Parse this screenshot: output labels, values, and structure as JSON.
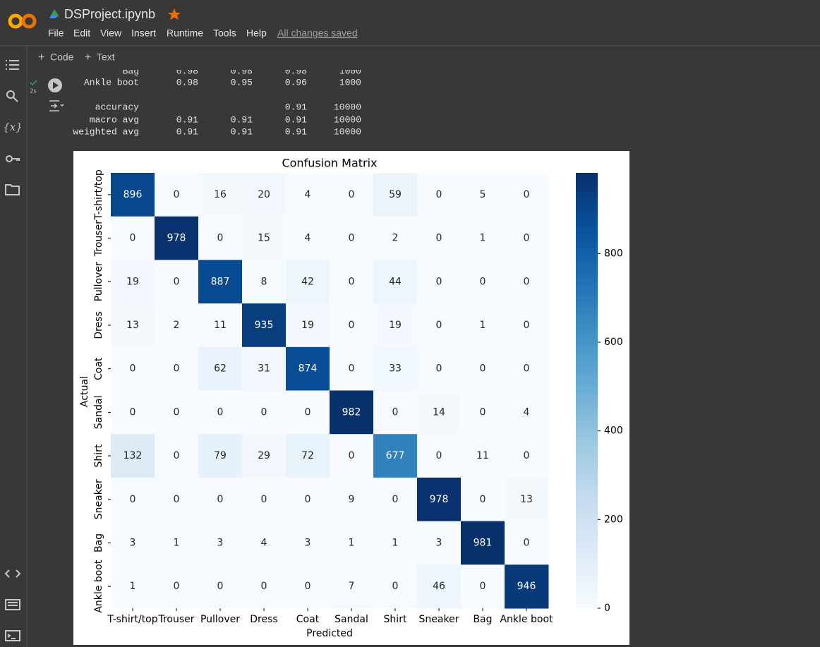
{
  "header": {
    "title": "DSProject.ipynb",
    "menu": [
      "File",
      "Edit",
      "View",
      "Insert",
      "Runtime",
      "Tools",
      "Help"
    ],
    "status": "All changes saved"
  },
  "toolbar": {
    "code": "Code",
    "text": "Text"
  },
  "cell": {
    "exec_time": "2s",
    "report": [
      [
        "Bag",
        0.98,
        0.98,
        0.98,
        1000
      ],
      [
        "Ankle boot",
        0.98,
        0.95,
        0.96,
        1000
      ],
      [
        "accuracy",
        null,
        null,
        0.91,
        10000
      ],
      [
        "macro avg",
        0.91,
        0.91,
        0.91,
        10000
      ],
      [
        "weighted avg",
        0.91,
        0.91,
        0.91,
        10000
      ]
    ]
  },
  "chart_data": {
    "type": "heatmap",
    "title": "Confusion Matrix",
    "x_label": "Predicted",
    "y_label": "Actual",
    "categories": [
      "T-shirt/top",
      "Trouser",
      "Pullover",
      "Dress",
      "Coat",
      "Sandal",
      "Shirt",
      "Sneaker",
      "Bag",
      "Ankle boot"
    ],
    "z": [
      [
        896,
        0,
        16,
        20,
        4,
        0,
        59,
        0,
        5,
        0
      ],
      [
        0,
        978,
        0,
        15,
        4,
        0,
        2,
        0,
        1,
        0
      ],
      [
        19,
        0,
        887,
        8,
        42,
        0,
        44,
        0,
        0,
        0
      ],
      [
        13,
        2,
        11,
        935,
        19,
        0,
        19,
        0,
        1,
        0
      ],
      [
        0,
        0,
        62,
        31,
        874,
        0,
        33,
        0,
        0,
        0
      ],
      [
        0,
        0,
        0,
        0,
        0,
        982,
        0,
        14,
        0,
        4
      ],
      [
        132,
        0,
        79,
        29,
        72,
        0,
        677,
        0,
        11,
        0
      ],
      [
        0,
        0,
        0,
        0,
        0,
        9,
        0,
        978,
        0,
        13
      ],
      [
        3,
        1,
        3,
        4,
        3,
        1,
        1,
        3,
        981,
        0
      ],
      [
        1,
        0,
        0,
        0,
        0,
        7,
        0,
        46,
        0,
        946
      ]
    ],
    "zlim": [
      0,
      982
    ],
    "zticks": [
      0,
      200,
      400,
      600,
      800
    ],
    "colors": [
      "#f7fbff",
      "#deebf7",
      "#c6dbef",
      "#9ecae1",
      "#6baed6",
      "#4292c6",
      "#2171b5",
      "#08519c",
      "#08306b"
    ]
  }
}
